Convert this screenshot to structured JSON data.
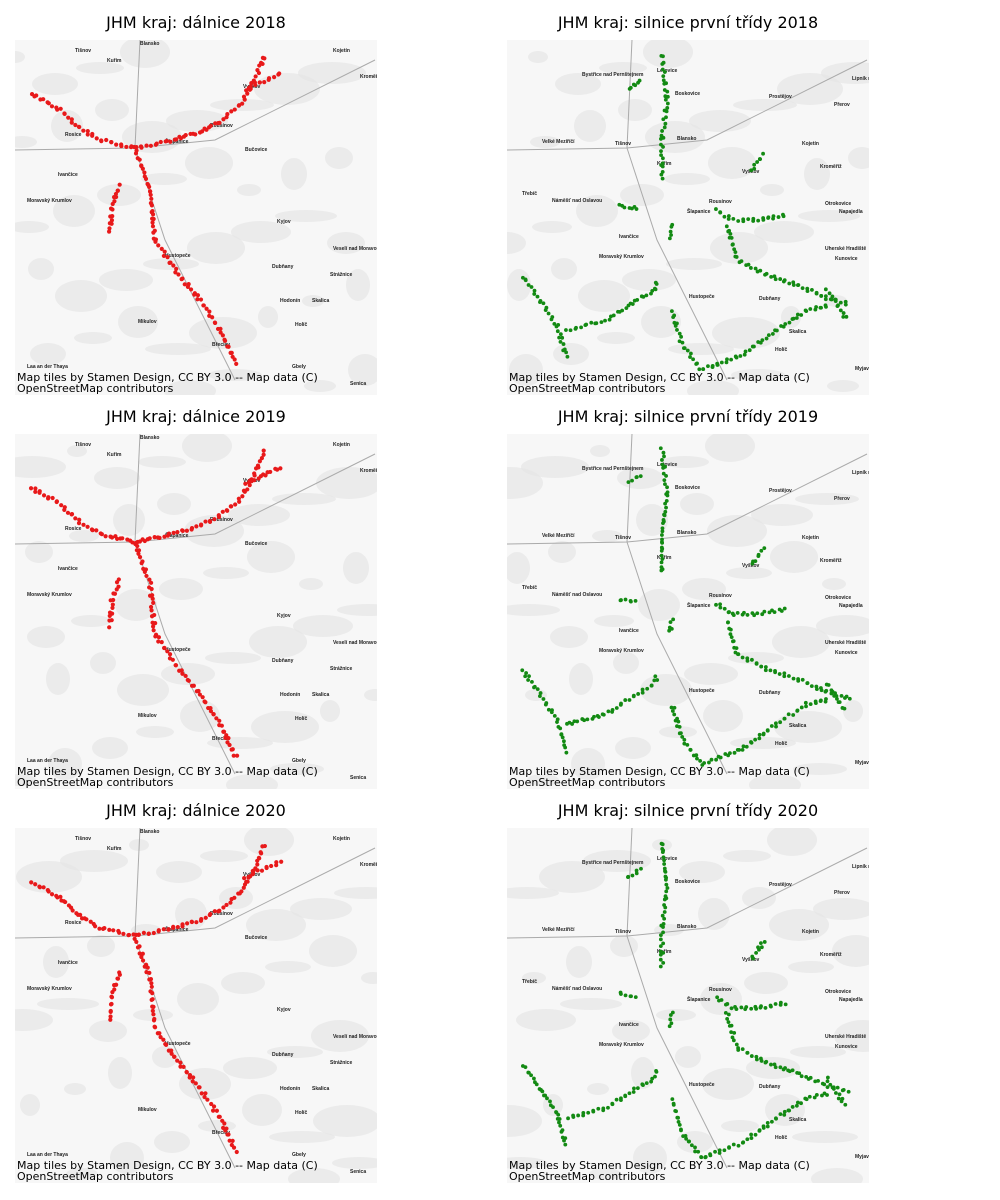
{
  "panels": [
    {
      "title": "JHM kraj: dálnice 2018",
      "places": [
        "Tišnov",
        "Blansko",
        "Kuřim",
        "Kojetín",
        "Kroměříž",
        "Vyškov",
        "Rousínov",
        "Rosice",
        "Šlapanice",
        "Bučovice",
        "Ivančice",
        "Moravský Krumlov",
        "Kyjov",
        "Veselí nad Moravou",
        "Hustopeče",
        "Dubňany",
        "Strážnice",
        "Hodonín",
        "Skalica",
        "Mikulov",
        "Holíč",
        "Břeclav",
        "Laa an der Thaya",
        "Gbely",
        "Senica"
      ],
      "attribution": [
        "Map tiles by Stamen Design, CC BY 3.0 -- Map data (C)",
        "OpenStreetMap contributors"
      ]
    },
    {
      "title": "JHM kraj: silnice první třídy 2018",
      "places": [
        "Bystřice nad Pernštejnem",
        "Letovice",
        "Boskovice",
        "Prostějov",
        "Přerov",
        "Lipník nad Bečvou",
        "Velké Meziříčí",
        "Tišnov",
        "Blansko",
        "Kuřim",
        "Kojetín",
        "Vyškov",
        "Kroměříž",
        "Třebíč",
        "Náměšť nad Oslavou",
        "Rousínov",
        "Otrokovice",
        "Napajedla",
        "Šlapanice",
        "Ivančice",
        "Uherské Hradiště",
        "Moravský Krumlov",
        "Kunovice",
        "Hustopeče",
        "Dubňany",
        "Skalica",
        "Holíč",
        "Myjava"
      ],
      "attribution": [
        "Map tiles by Stamen Design, CC BY 3.0 -- Map data (C)",
        "OpenStreetMap contributors"
      ]
    },
    {
      "title": "JHM kraj: dálnice 2019",
      "places": [
        "Tišnov",
        "Blansko",
        "Kuřim",
        "Kojetín",
        "Kroměříž",
        "Vyškov",
        "Rousínov",
        "Rosice",
        "Šlapanice",
        "Bučovice",
        "Ivančice",
        "Moravský Krumlov",
        "Kyjov",
        "Veselí nad Moravou",
        "Hustopeče",
        "Dubňany",
        "Strážnice",
        "Hodonín",
        "Skalica",
        "Mikulov",
        "Holíč",
        "Břeclav",
        "Laa an der Thaya",
        "Gbely",
        "Senica"
      ],
      "attribution": [
        "Map tiles by Stamen Design, CC BY 3.0 -- Map data (C)",
        "OpenStreetMap contributors"
      ]
    },
    {
      "title": "JHM kraj: silnice první třídy 2019",
      "places": [
        "Bystřice nad Pernštejnem",
        "Letovice",
        "Boskovice",
        "Prostějov",
        "Přerov",
        "Lipník nad Bečvou",
        "Velké Meziříčí",
        "Tišnov",
        "Blansko",
        "Kuřim",
        "Kojetín",
        "Vyškov",
        "Kroměříž",
        "Třebíč",
        "Náměšť nad Oslavou",
        "Rousínov",
        "Otrokovice",
        "Napajedla",
        "Šlapanice",
        "Ivančice",
        "Uherské Hradiště",
        "Moravský Krumlov",
        "Kunovice",
        "Hustopeče",
        "Dubňany",
        "Skalica",
        "Holíč",
        "Myjava"
      ],
      "attribution": [
        "Map tiles by Stamen Design, CC BY 3.0 -- Map data (C)",
        "OpenStreetMap contributors"
      ]
    },
    {
      "title": "JHM kraj: dálnice 2020",
      "places": [
        "Tišnov",
        "Blansko",
        "Kuřim",
        "Kojetín",
        "Kroměříž",
        "Vyškov",
        "Rousínov",
        "Rosice",
        "Šlapanice",
        "Bučovice",
        "Ivančice",
        "Moravský Krumlov",
        "Kyjov",
        "Veselí nad Moravou",
        "Hustopeče",
        "Dubňany",
        "Strážnice",
        "Hodonín",
        "Skalica",
        "Mikulov",
        "Holíč",
        "Břeclav",
        "Laa an der Thaya",
        "Gbely",
        "Senica"
      ],
      "attribution": [
        "Map tiles by Stamen Design, CC BY 3.0 -- Map data (C)",
        "OpenStreetMap contributors"
      ]
    },
    {
      "title": "JHM kraj: silnice první třídy 2020",
      "places": [
        "Bystřice nad Pernštejnem",
        "Letovice",
        "Boskovice",
        "Prostějov",
        "Přerov",
        "Lipník nad Bečvou",
        "Velké Meziříčí",
        "Tišnov",
        "Blansko",
        "Kuřim",
        "Kojetín",
        "Vyškov",
        "Kroměříž",
        "Třebíč",
        "Náměšť nad Oslavou",
        "Rousínov",
        "Otrokovice",
        "Napajedla",
        "Šlapanice",
        "Ivančice",
        "Uherské Hradiště",
        "Moravský Krumlov",
        "Kunovice",
        "Hustopeče",
        "Dubňany",
        "Skalica",
        "Holíč",
        "Myjava"
      ],
      "attribution": [
        "Map tiles by Stamen Design, CC BY 3.0 -- Map data (C)",
        "OpenStreetMap contributors"
      ]
    }
  ]
}
